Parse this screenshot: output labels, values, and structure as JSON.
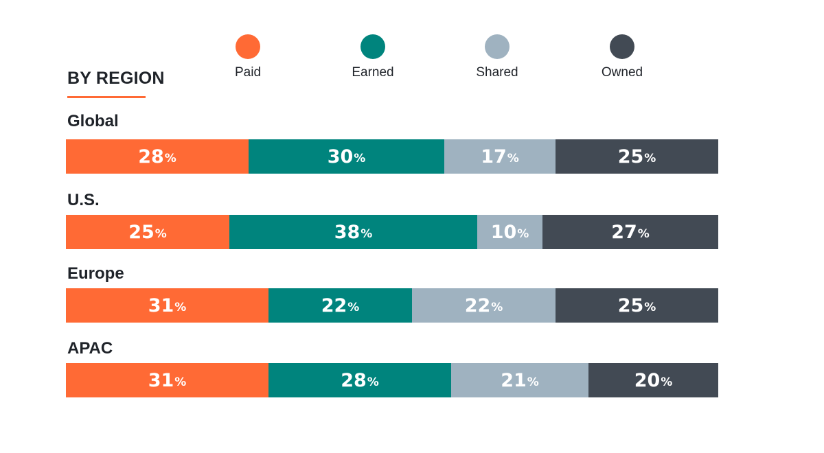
{
  "chart_data": {
    "type": "bar",
    "stacked": true,
    "orientation": "horizontal",
    "title": "BY REGION",
    "categories": [
      "Global",
      "U.S.",
      "Europe",
      "APAC"
    ],
    "series": [
      {
        "name": "Paid",
        "color": "#ff6a35",
        "values": [
          28,
          25,
          31,
          31
        ]
      },
      {
        "name": "Earned",
        "color": "#00847d",
        "values": [
          30,
          38,
          22,
          28
        ]
      },
      {
        "name": "Shared",
        "color": "#9fb2c0",
        "values": [
          17,
          10,
          22,
          21
        ]
      },
      {
        "name": "Owned",
        "color": "#424a54",
        "values": [
          25,
          27,
          25,
          20
        ]
      }
    ],
    "value_suffix": "%",
    "legend_position": "top"
  }
}
